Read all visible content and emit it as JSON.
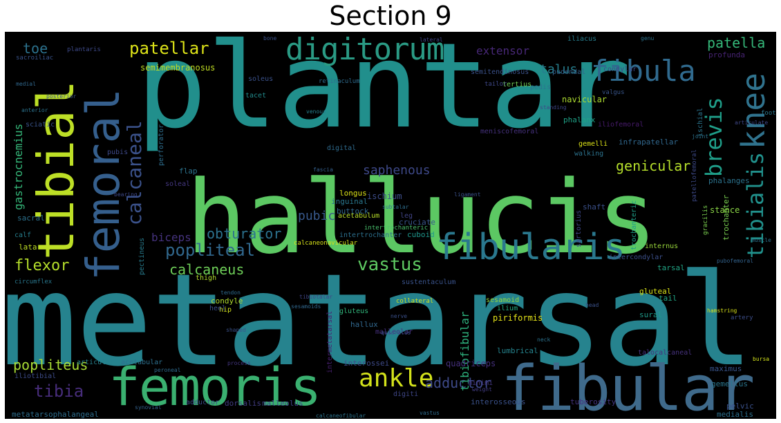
{
  "title": "Section 9",
  "words": {
    "plantar": {
      "text": "plantar",
      "color": "#218f8c"
    },
    "metatarsal": {
      "text": "metatarsal",
      "color": "#26838e"
    },
    "hallucis": {
      "text": "hallucis",
      "color": "#5cc863"
    },
    "fibular": {
      "text": "fibular",
      "color": "#3f6a8b"
    },
    "femoris": {
      "text": "femoris",
      "color": "#3ab070"
    },
    "femoral": {
      "text": "femoral",
      "color": "#355f8d"
    },
    "tibial": {
      "text": "tibial",
      "color": "#bddf26"
    },
    "digitorum": {
      "text": "digitorum",
      "color": "#2a9a84"
    },
    "fibularis": {
      "text": "fibularis",
      "color": "#2a788e"
    },
    "fibula": {
      "text": "fibula",
      "color": "#306a8e"
    },
    "knee": {
      "text": "knee",
      "color": "#30738e"
    },
    "tibialis": {
      "text": "tibialis",
      "color": "#21918c"
    },
    "ankle": {
      "text": "ankle",
      "color": "#d3e21b"
    },
    "brevis": {
      "text": "brevis",
      "color": "#1f9e89"
    },
    "calcaneal": {
      "text": "calcaneal",
      "color": "#3b528b"
    },
    "patellar": {
      "text": "patellar",
      "color": "#dde318"
    },
    "popliteal": {
      "text": "popliteal",
      "color": "#31688e"
    },
    "vastus": {
      "text": "vastus",
      "color": "#5ec962"
    },
    "calcaneus": {
      "text": "calcaneus",
      "color": "#6ece58"
    },
    "flexor": {
      "text": "flexor",
      "color": "#b5de2b"
    },
    "obturator": {
      "text": "obturator",
      "color": "#2c728e"
    },
    "biceps": {
      "text": "biceps",
      "color": "#46337f"
    },
    "tibia": {
      "text": "tibia",
      "color": "#472d7b"
    },
    "adductor": {
      "text": "adductor",
      "color": "#3e4a89"
    },
    "popliteus": {
      "text": "popliteus",
      "color": "#a8db34"
    },
    "patella": {
      "text": "patella",
      "color": "#35b779"
    },
    "talus": {
      "text": "talus",
      "color": "#277f8e"
    },
    "toe": {
      "text": "toe",
      "color": "#2c728e"
    },
    "extensor": {
      "text": "extensor",
      "color": "#482878"
    },
    "saphenous": {
      "text": "saphenous",
      "color": "#3e4989"
    },
    "genicular": {
      "text": "genicular",
      "color": "#b5de2b"
    },
    "gastrocnemius": {
      "text": "gastrocnemius",
      "color": "#35b779"
    },
    "tibiofibular": {
      "text": "tibiofibular",
      "color": "#2db27d"
    },
    "pubic": {
      "text": "pubic",
      "color": "#38598c"
    },
    "semimembranosus": {
      "text": "semimembranosus",
      "color": "#c2df23"
    },
    "sciatic": {
      "text": "sciatic",
      "color": "#3a548c"
    },
    "navicular": {
      "text": "navicular",
      "color": "#addc30"
    },
    "calcaneonavicular": {
      "text": "calcaneonavicular",
      "color": "#d8e219"
    },
    "interosseous": {
      "text": "interosseous",
      "color": "#3b528b"
    },
    "metatarsophalangeal": {
      "text": "metatarsophalangeal",
      "color": "#2e6e8e"
    },
    "quadriceps": {
      "text": "quadriceps",
      "color": "#46307e"
    },
    "articular": {
      "text": "articular",
      "color": "#26818e"
    },
    "acetabular": {
      "text": "acetabular",
      "color": "#2d708e"
    },
    "interossei": {
      "text": "interossei",
      "color": "#3e4a89"
    },
    "dorsalis": {
      "text": "dorsalis",
      "color": "#433e85"
    },
    "malleolus": {
      "text": "malleolus",
      "color": "#404588"
    },
    "digiti": {
      "text": "digiti",
      "color": "#3f4788"
    },
    "minimi": {
      "text": "minimi",
      "color": "#453882"
    },
    "lumbrical": {
      "text": "lumbrical",
      "color": "#25848e"
    },
    "tuberosity": {
      "text": "tuberosity",
      "color": "#453581"
    },
    "gemellus": {
      "text": "gemellus",
      "color": "#2a768e"
    },
    "pelvic": {
      "text": "pelvic",
      "color": "#3b518b"
    },
    "maximus": {
      "text": "maximus",
      "color": "#39558c"
    },
    "medialis": {
      "text": "medialis",
      "color": "#2d708e"
    },
    "sural": {
      "text": "sural",
      "color": "#1f9a8a"
    },
    "talocalcaneal": {
      "text": "talocalcaneal",
      "color": "#46327e"
    },
    "gluteal": {
      "text": "gluteal",
      "color": "#dae319"
    },
    "tarsal": {
      "text": "tarsal",
      "color": "#21a585"
    },
    "tail": {
      "text": "tail",
      "color": "#22a785"
    },
    "piriformis": {
      "text": "piriformis",
      "color": "#e5e419"
    },
    "sesamoid": {
      "text": "sesamoid",
      "color": "#95d840"
    },
    "ilium": {
      "text": "ilium",
      "color": "#25ab82"
    },
    "hallux": {
      "text": "hallux",
      "color": "#31688e"
    },
    "gluteus": {
      "text": "gluteus",
      "color": "#31b57b"
    },
    "malleolar": {
      "text": "malleolar",
      "color": "#46307e"
    },
    "intermetatarsal": {
      "text": "intermetatarsal",
      "color": "#482071"
    },
    "intertrochanteric": {
      "text": "intertrochanteric",
      "color": "#4ac16d"
    },
    "intertrochanter": {
      "text": "intertrochanter",
      "color": "#2d708e"
    },
    "iliotibial": {
      "text": "iliotibial",
      "color": "#3e4c8a"
    },
    "cruciate": {
      "text": "cruciate",
      "color": "#39558c"
    },
    "cuboid": {
      "text": "cuboid",
      "color": "#1f968b"
    },
    "acetabulum": {
      "text": "acetabulum",
      "color": "#b8de29"
    },
    "sartorius": {
      "text": "sartorius",
      "color": "#3f4889"
    },
    "trochanter": {
      "text": "trochanter",
      "color": "#7ad151"
    },
    "trochanteric": {
      "text": "trochanteric",
      "color": "#1f9e89"
    },
    "internus": {
      "text": "internus",
      "color": "#9bd93c"
    },
    "intercondylar": {
      "text": "intercondylar",
      "color": "#3c508b"
    },
    "infrapatellar": {
      "text": "infrapatellar",
      "color": "#31688e"
    },
    "ischial": {
      "text": "ischial",
      "color": "#2b758e"
    },
    "condylar": {
      "text": "condylar",
      "color": "#3e4989"
    },
    "condyle": {
      "text": "condyle",
      "color": "#b0dd2f"
    },
    "phalanx": {
      "text": "phalanx",
      "color": "#1fa287"
    },
    "phalanges": {
      "text": "phalanges",
      "color": "#2c738e"
    },
    "meniscofemoral": {
      "text": "meniscofemoral",
      "color": "#46327e"
    },
    "iliofemoral": {
      "text": "iliofemoral",
      "color": "#481b6d"
    },
    "gemelli": {
      "text": "gemelli",
      "color": "#dde318"
    },
    "walking": {
      "text": "walking",
      "color": "#2c738e"
    },
    "iliacus": {
      "text": "iliacus",
      "color": "#277e8e"
    },
    "pudendal": {
      "text": "pudendal",
      "color": "#34618d"
    },
    "profunda": {
      "text": "profunda",
      "color": "#482475"
    },
    "tertius": {
      "text": "tertius",
      "color": "#73d056"
    },
    "tailor": {
      "text": "tailor",
      "color": "#3f4889"
    },
    "retinaculum": {
      "text": "retinaculum",
      "color": "#2f6c8e"
    },
    "soleus": {
      "text": "soleus",
      "color": "#3b528b"
    },
    "pedis": {
      "text": "pedis",
      "color": "#2b748e"
    },
    "tacet": {
      "text": "tacet",
      "color": "#228c8d"
    },
    "semitendinosus": {
      "text": "semitendinosus",
      "color": "#3b528b"
    },
    "sacroiliac": {
      "text": "sacroiliac",
      "color": "#3a548c"
    },
    "plantaris": {
      "text": "plantaris",
      "color": "#3e4a89"
    },
    "flap": {
      "text": "flap",
      "color": "#2c738e"
    },
    "perforator": {
      "text": "perforator",
      "color": "#2e6e8e"
    },
    "pubis": {
      "text": "pubis",
      "color": "#3e4989"
    },
    "soleal": {
      "text": "soleal",
      "color": "#453882"
    },
    "digital": {
      "text": "digital",
      "color": "#2f6b8e"
    },
    "gracilis": {
      "text": "gracilis",
      "color": "#7cd250"
    },
    "stance": {
      "text": "stance",
      "color": "#8bd646"
    },
    "shaft": {
      "text": "shaft",
      "color": "#3b518b"
    },
    "ischium": {
      "text": "ischium",
      "color": "#3d4d8a"
    },
    "inguinal": {
      "text": "inguinal",
      "color": "#2a778e"
    },
    "buttock": {
      "text": "buttock",
      "color": "#31688e"
    },
    "longus": {
      "text": "longus",
      "color": "#dde318"
    },
    "leg": {
      "text": "leg",
      "color": "#414487"
    },
    "pectineus": {
      "text": "pectineus",
      "color": "#287c8e"
    },
    "sacral": {
      "text": "sacral",
      "color": "#2c728e"
    },
    "calf": {
      "text": "calf",
      "color": "#277f8e"
    },
    "lata": {
      "text": "lata",
      "color": "#c0df25"
    },
    "thigh": {
      "text": "thigh",
      "color": "#b2dd2d"
    },
    "hip": {
      "text": "hip",
      "color": "#d0e11c"
    },
    "heel": {
      "text": "heel",
      "color": "#3c4f8a"
    },
    "circumflex": {
      "text": "circumflex",
      "color": "#2a788e"
    },
    "sustentaculum": {
      "text": "sustentaculum",
      "color": "#3a538b"
    },
    "collateral": {
      "text": "collateral",
      "color": "#d0e11c"
    },
    "quadratus": {
      "text": "quadratus",
      "color": "#3b528b"
    },
    "foot": {
      "text": "foot",
      "color": "#2a788e"
    },
    "bursa": {
      "text": "bursa",
      "color": "#d2e21b"
    },
    "artery": {
      "text": "artery",
      "color": "#3d4e8a"
    },
    "weight": {
      "text": "weight",
      "color": "#433d84"
    },
    "fascia": {
      "text": "fascia",
      "color": "#35608d"
    },
    "tendon": {
      "text": "tendon",
      "color": "#2f6b8e"
    },
    "bearing": {
      "text": "bearing",
      "color": "#3e4989"
    },
    "venous": {
      "text": "venous",
      "color": "#26818e"
    },
    "vastus_small": {
      "text": "vastus",
      "color": "#2f6c8e"
    },
    "small_a": {
      "text": "valgus",
      "color": "#39568c"
    },
    "small_b": {
      "text": "genu",
      "color": "#2c738e"
    },
    "small_c": {
      "text": "standing",
      "color": "#3f4788"
    },
    "small_d": {
      "text": "articulate",
      "color": "#3f4889"
    },
    "small_e": {
      "text": "pubofemoral",
      "color": "#33638d"
    },
    "small_f": {
      "text": "hamstring",
      "color": "#d8e219"
    },
    "small_g": {
      "text": "shaped",
      "color": "#3b528b"
    },
    "small_h": {
      "text": "process",
      "color": "#453781"
    },
    "small_i": {
      "text": "peroneal",
      "color": "#2f6b8e"
    },
    "small_j": {
      "text": "synovial",
      "color": "#34618d"
    },
    "small_k": {
      "text": "patellofemoral",
      "color": "#3e4a89"
    },
    "small_l": {
      "text": "calcaneofibular",
      "color": "#2c738e"
    },
    "small_m": {
      "text": "nerve",
      "color": "#3b518b"
    },
    "small_n": {
      "text": "sesamoids",
      "color": "#31688e"
    },
    "small_o": {
      "text": "tibiotalar",
      "color": "#404588"
    },
    "small_p": {
      "text": "subtalar",
      "color": "#2e6e8e"
    },
    "small_q": {
      "text": "ligament",
      "color": "#3b528b"
    },
    "small_r": {
      "text": "joint",
      "color": "#2c728e"
    },
    "small_s": {
      "text": "muscle",
      "color": "#2c738e"
    },
    "small_t": {
      "text": "bone",
      "color": "#3b528b"
    },
    "small_u": {
      "text": "lateral",
      "color": "#404588"
    },
    "small_v": {
      "text": "medial",
      "color": "#31688e"
    },
    "small_w": {
      "text": "posterior",
      "color": "#3b528b"
    },
    "small_x": {
      "text": "anterior",
      "color": "#2c738e"
    },
    "small_y": {
      "text": "head",
      "color": "#3b528b"
    },
    "small_z": {
      "text": "neck",
      "color": "#2c728e"
    }
  }
}
